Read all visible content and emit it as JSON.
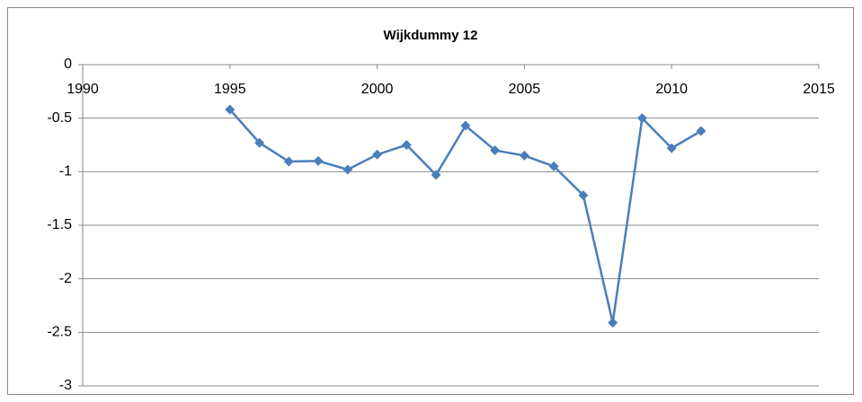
{
  "chart_data": {
    "type": "line",
    "title": "Wijkdummy 12",
    "x": [
      1995,
      1996,
      1997,
      1998,
      1999,
      2000,
      2001,
      2002,
      2003,
      2004,
      2005,
      2006,
      2007,
      2008,
      2009,
      2010,
      2011
    ],
    "series": [
      {
        "name": "Wijkdummy 12",
        "color": "#4a7ebb",
        "values": [
          -0.42,
          -0.73,
          -0.905,
          -0.9,
          -0.98,
          -0.84,
          -0.75,
          -1.03,
          -0.57,
          -0.8,
          -0.85,
          -0.95,
          -1.22,
          -2.41,
          -0.5,
          -0.78,
          -0.62
        ]
      }
    ],
    "xlim": [
      1990,
      2015
    ],
    "xticks": [
      1990,
      1995,
      2000,
      2005,
      2010,
      2015
    ],
    "ylim": [
      -3,
      0
    ],
    "yticks": [
      0,
      -0.5,
      -1,
      -1.5,
      -2,
      -2.5,
      -3
    ],
    "grid": true
  }
}
